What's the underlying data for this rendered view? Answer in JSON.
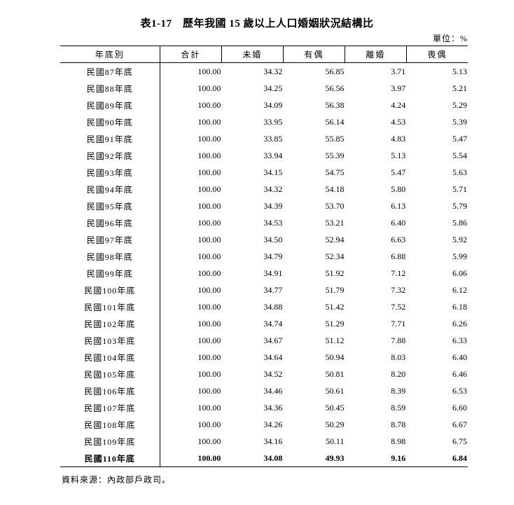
{
  "title": "表1-17　歷年我國 15 歲以上人口婚姻狀況結構比",
  "unit": "單位：%",
  "headers": [
    "年底別",
    "合計",
    "未婚",
    "有偶",
    "離婚",
    "喪偶"
  ],
  "rows": [
    [
      "民國87年底",
      "100.00",
      "34.32",
      "56.85",
      "3.71",
      "5.13"
    ],
    [
      "民國88年底",
      "100.00",
      "34.25",
      "56.56",
      "3.97",
      "5.21"
    ],
    [
      "民國89年底",
      "100.00",
      "34.09",
      "56.38",
      "4.24",
      "5.29"
    ],
    [
      "民國90年底",
      "100.00",
      "33.95",
      "56.14",
      "4.53",
      "5.39"
    ],
    [
      "民國91年底",
      "100.00",
      "33.85",
      "55.85",
      "4.83",
      "5.47"
    ],
    [
      "民國92年底",
      "100.00",
      "33.94",
      "55.39",
      "5.13",
      "5.54"
    ],
    [
      "民國93年底",
      "100.00",
      "34.15",
      "54.75",
      "5.47",
      "5.63"
    ],
    [
      "民國94年底",
      "100.00",
      "34.32",
      "54.18",
      "5.80",
      "5.71"
    ],
    [
      "民國95年底",
      "100.00",
      "34.39",
      "53.70",
      "6.13",
      "5.79"
    ],
    [
      "民國96年底",
      "100.00",
      "34.53",
      "53.21",
      "6.40",
      "5.86"
    ],
    [
      "民國97年底",
      "100.00",
      "34.50",
      "52.94",
      "6.63",
      "5.92"
    ],
    [
      "民國98年底",
      "100.00",
      "34.79",
      "52.34",
      "6.88",
      "5.99"
    ],
    [
      "民國99年底",
      "100.00",
      "34.91",
      "51.92",
      "7.12",
      "6.06"
    ],
    [
      "民國100年底",
      "100.00",
      "34.77",
      "51.79",
      "7.32",
      "6.12"
    ],
    [
      "民國101年底",
      "100.00",
      "34.88",
      "51.42",
      "7.52",
      "6.18"
    ],
    [
      "民國102年底",
      "100.00",
      "34.74",
      "51.29",
      "7.71",
      "6.26"
    ],
    [
      "民國103年底",
      "100.00",
      "34.67",
      "51.12",
      "7.88",
      "6.33"
    ],
    [
      "民國104年底",
      "100.00",
      "34.64",
      "50.94",
      "8.03",
      "6.40"
    ],
    [
      "民國105年底",
      "100.00",
      "34.52",
      "50.81",
      "8.20",
      "6.46"
    ],
    [
      "民國106年底",
      "100.00",
      "34.46",
      "50.61",
      "8.39",
      "6.53"
    ],
    [
      "民國107年底",
      "100.00",
      "34.36",
      "50.45",
      "8.59",
      "6.60"
    ],
    [
      "民國108年底",
      "100.00",
      "34.26",
      "50.29",
      "8.78",
      "6.67"
    ],
    [
      "民國109年底",
      "100.00",
      "34.16",
      "50.11",
      "8.98",
      "6.75"
    ],
    [
      "民國110年底",
      "100.00",
      "34.08",
      "49.93",
      "9.16",
      "6.84"
    ]
  ],
  "source": "資料來源：內政部戶政司。"
}
